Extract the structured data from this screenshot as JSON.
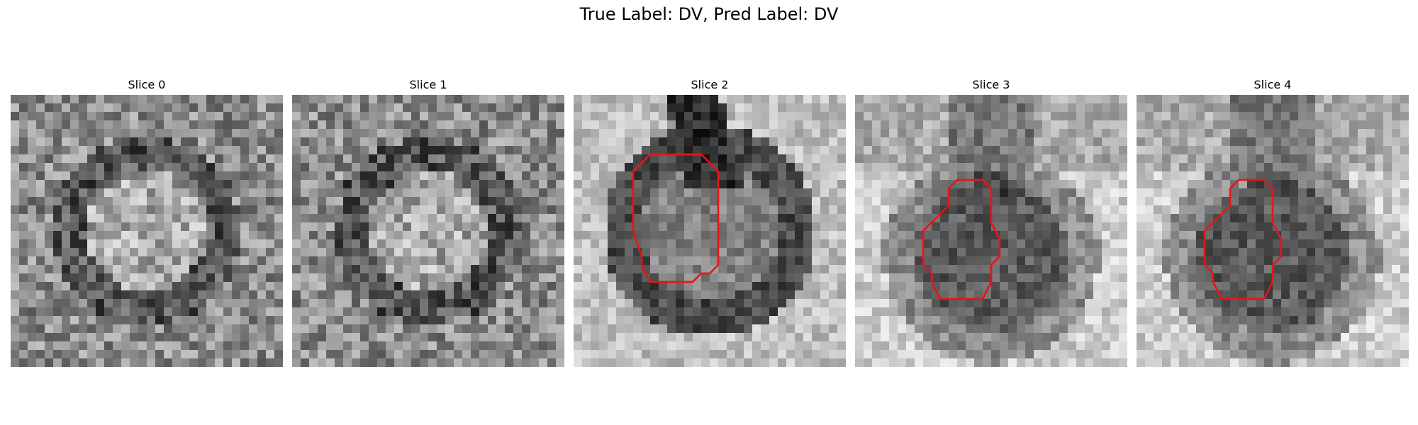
{
  "figure": {
    "title": "True Label: DV, Pred Label: DV"
  },
  "panels": [
    {
      "title": "Slice 0",
      "seed": 11,
      "style": "ring",
      "contour": null
    },
    {
      "title": "Slice 1",
      "seed": 23,
      "style": "ring",
      "contour": null
    },
    {
      "title": "Slice 2",
      "seed": 37,
      "style": "ring-bright",
      "contour": "c2"
    },
    {
      "title": "Slice 3",
      "seed": 51,
      "style": "butterfly",
      "contour": "c3"
    },
    {
      "title": "Slice 4",
      "seed": 53,
      "style": "butterfly",
      "contour": "c3"
    }
  ],
  "colors": {
    "contour": "#e8141a",
    "background": "#ffffff"
  }
}
